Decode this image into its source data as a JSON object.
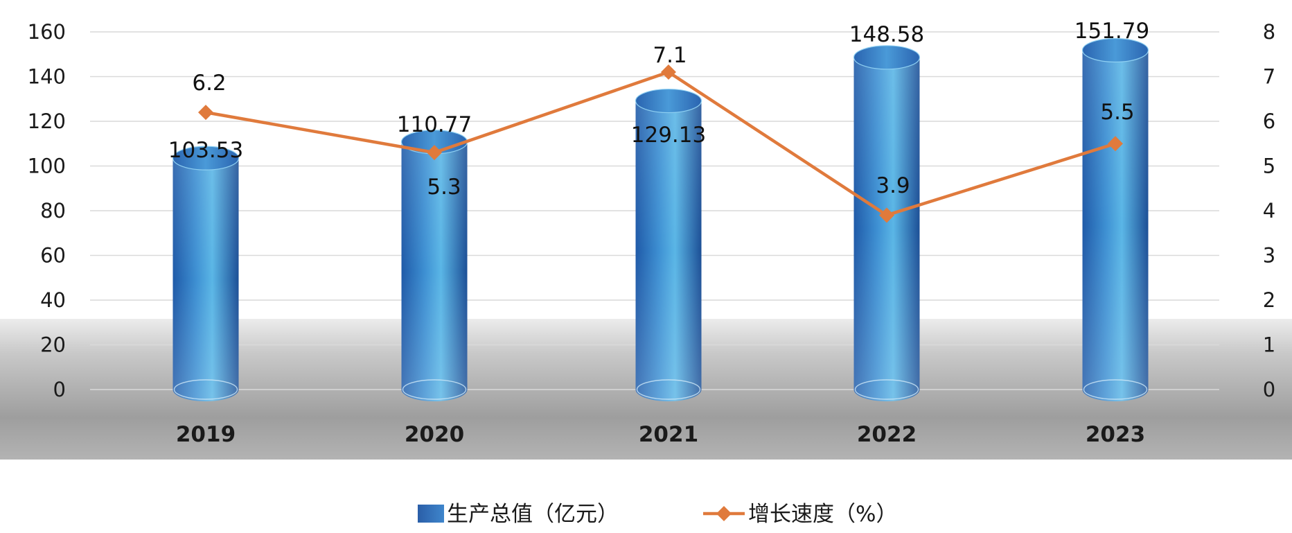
{
  "chart_data": {
    "type": "bar",
    "categories": [
      "2019",
      "2020",
      "2021",
      "2022",
      "2023"
    ],
    "series": [
      {
        "name": "生产总值（亿元）",
        "type": "bar",
        "axis": "left",
        "values": [
          103.53,
          110.77,
          129.13,
          148.58,
          151.79
        ],
        "labels": [
          "103.53",
          "110.77",
          "129.13",
          "148.58",
          "151.79"
        ]
      },
      {
        "name": "增长速度（%）",
        "type": "line",
        "axis": "right",
        "values": [
          6.2,
          5.3,
          7.1,
          3.9,
          5.5
        ],
        "labels": [
          "6.2",
          "5.3",
          "7.1",
          "3.9",
          "5.5"
        ]
      }
    ],
    "title": "",
    "xlabel": "",
    "ylabel": "",
    "y_left": {
      "min": 0,
      "max": 160,
      "ticks": [
        "0",
        "20",
        "40",
        "60",
        "80",
        "100",
        "120",
        "140",
        "160"
      ]
    },
    "y_right": {
      "min": 0,
      "max": 8,
      "ticks": [
        "0",
        "1",
        "2",
        "3",
        "4",
        "5",
        "6",
        "7",
        "8"
      ]
    },
    "grid": true,
    "legend_position": "bottom-center",
    "colors": {
      "bar": "#2f7fc4",
      "bar_dark": "#1c4f96",
      "bar_light": "#5fc3ee",
      "line": "#e07a3c",
      "grid": "#d9d9d9",
      "floor": "#9a9a9a"
    }
  }
}
